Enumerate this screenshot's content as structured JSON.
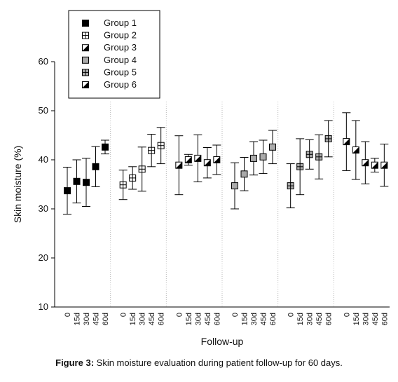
{
  "chart_data": {
    "type": "errorbar",
    "y_label": "Skin moisture  (%)",
    "x_label": "Follow-up",
    "caption": {
      "label": "Figure 3:",
      "text": "Skin moisture evaluation during patient follow-up for 60 days."
    },
    "ylim": [
      10,
      60
    ],
    "yticks": [
      10,
      20,
      30,
      40,
      50,
      60
    ],
    "series": [
      {
        "name": "Group 1",
        "marker": "filled",
        "categories": [
          "0",
          "15d",
          "30d",
          "45d",
          "60d"
        ],
        "values": [
          33.7,
          35.6,
          35.4,
          38.6,
          42.6
        ],
        "errors": [
          4.8,
          4.4,
          4.9,
          4.1,
          1.4
        ]
      },
      {
        "name": "Group 2",
        "marker": "cross",
        "categories": [
          "0",
          "15d",
          "30d",
          "45d",
          "60d"
        ],
        "values": [
          34.9,
          36.3,
          38.1,
          41.9,
          42.9
        ],
        "errors": [
          3.0,
          2.3,
          4.5,
          3.3,
          3.7
        ]
      },
      {
        "name": "Group 3",
        "marker": "half",
        "categories": [
          "0",
          "15d",
          "30d",
          "45d",
          "60d"
        ],
        "values": [
          38.9,
          40.0,
          40.3,
          39.4,
          40.0
        ],
        "errors": [
          6.0,
          1.1,
          4.8,
          3.1,
          3.0
        ]
      },
      {
        "name": "Group 4",
        "marker": "gray",
        "categories": [
          "0",
          "15d",
          "30d",
          "45d",
          "60d"
        ],
        "values": [
          34.7,
          37.1,
          40.3,
          40.6,
          42.6
        ],
        "errors": [
          4.7,
          3.4,
          3.4,
          3.4,
          3.4
        ]
      },
      {
        "name": "Group 5",
        "marker": "gray-cross",
        "categories": [
          "0",
          "15d",
          "30d",
          "45d",
          "60d"
        ],
        "values": [
          34.7,
          38.6,
          41.1,
          40.6,
          44.3
        ],
        "errors": [
          4.5,
          5.7,
          3.0,
          4.5,
          3.7
        ]
      },
      {
        "name": "Group 6",
        "marker": "half",
        "categories": [
          "0",
          "15d",
          "30d",
          "45d",
          "60d"
        ],
        "values": [
          43.7,
          42.0,
          39.4,
          38.9,
          38.9
        ],
        "errors": [
          5.9,
          6.0,
          4.3,
          1.4,
          4.3
        ]
      }
    ]
  }
}
